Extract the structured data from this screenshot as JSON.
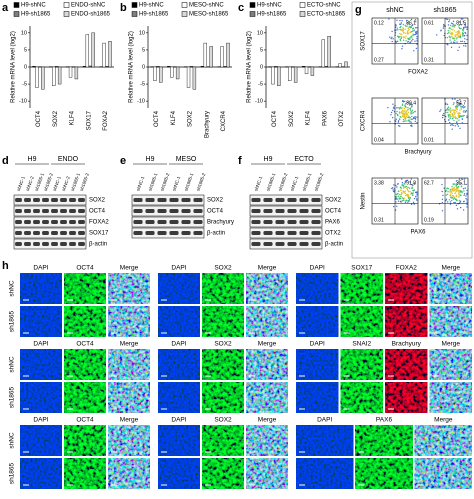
{
  "chart_data": [
    {
      "type": "bar",
      "label": "a",
      "ylabel": "Relative mRNA level (log2)",
      "categories": [
        "OCT4",
        "SOX2",
        "KLF4",
        "SOX17",
        "FOXA2"
      ],
      "series": [
        {
          "name": "H9-shNC",
          "color": "#000000",
          "values": [
            0.2,
            0.1,
            0.1,
            0.2,
            0.1
          ]
        },
        {
          "name": "ENDO-shNC",
          "color": "#ffffff",
          "values": [
            -6,
            -5.5,
            -3,
            9.5,
            7
          ]
        },
        {
          "name": "H9-sh1865",
          "color": "#7f7f7f",
          "values": [
            0.1,
            0.2,
            0.1,
            0.3,
            0.2
          ]
        },
        {
          "name": "ENDO-sh1865",
          "color": "#d9d9d9",
          "values": [
            -6.5,
            -5,
            -3.5,
            10,
            7.5
          ]
        }
      ],
      "ylim": [
        -12,
        12
      ],
      "yticks": [
        -10,
        -5,
        0,
        5,
        10
      ]
    },
    {
      "type": "bar",
      "label": "b",
      "ylabel": "Relative mRNA level (log2)",
      "categories": [
        "OCT4",
        "KLF4",
        "SOX2",
        "Brachyury",
        "CXCR4"
      ],
      "series": [
        {
          "name": "H9-shNC",
          "color": "#000000",
          "values": [
            0.1,
            0.2,
            0.1,
            0.2,
            0.1
          ]
        },
        {
          "name": "MESO-shNC",
          "color": "#ffffff",
          "values": [
            -4,
            -3,
            -6,
            7,
            6
          ]
        },
        {
          "name": "H9-sh1865",
          "color": "#7f7f7f",
          "values": [
            0.2,
            0.1,
            0.2,
            0.1,
            0.2
          ]
        },
        {
          "name": "MESO-sh1865",
          "color": "#d9d9d9",
          "values": [
            -4.5,
            -3.5,
            -6.5,
            6,
            7
          ]
        }
      ],
      "ylim": [
        -12,
        12
      ],
      "yticks": [
        -10,
        -5,
        0,
        5,
        10
      ]
    },
    {
      "type": "bar",
      "label": "c",
      "ylabel": "Relative mRNA level (log2)",
      "categories": [
        "OCT4",
        "SOX2",
        "KLF4",
        "PAX6",
        "OTX2"
      ],
      "series": [
        {
          "name": "H9-shNC",
          "color": "#000000",
          "values": [
            0.1,
            0.1,
            0.2,
            0.1,
            0.1
          ]
        },
        {
          "name": "ECTO-shNC",
          "color": "#ffffff",
          "values": [
            -5,
            -4,
            -2,
            8,
            1
          ]
        },
        {
          "name": "H9-sh1865",
          "color": "#7f7f7f",
          "values": [
            0.2,
            0.1,
            0.1,
            0.2,
            0.1
          ]
        },
        {
          "name": "ECTO-sh1865",
          "color": "#d9d9d9",
          "values": [
            -5.5,
            -4.5,
            -2.5,
            9,
            1.5
          ]
        }
      ],
      "ylim": [
        -12,
        12
      ],
      "yticks": [
        -10,
        -5,
        0,
        5,
        10
      ]
    }
  ],
  "blots": [
    {
      "label": "d",
      "groups": [
        {
          "name": "H9",
          "lanes": [
            "shNC-1",
            "shNC-2",
            "sh1865-1",
            "sh1865-2"
          ]
        },
        {
          "name": "ENDO",
          "lanes": [
            "shNC-1",
            "shNC-2",
            "sh1865-1",
            "sh1865-2"
          ]
        }
      ],
      "rows": [
        "SOX2",
        "OCT4",
        "FOXA2",
        "SOX17",
        "β-actin"
      ]
    },
    {
      "label": "e",
      "groups": [
        {
          "name": "H9",
          "lanes": [
            "shNC-1",
            "sh1865-1",
            "sh1865-2"
          ]
        },
        {
          "name": "MESO",
          "lanes": [
            "shNC-1",
            "sh1865-1",
            "sh1865-2"
          ]
        }
      ],
      "rows": [
        "SOX2",
        "OCT4",
        "Brachyury",
        "β-actin"
      ]
    },
    {
      "label": "f",
      "groups": [
        {
          "name": "H9",
          "lanes": [
            "shNC-1",
            "sh1865-1",
            "sh1865-2"
          ]
        },
        {
          "name": "ECTO",
          "lanes": [
            "shNC-1",
            "sh1865-1",
            "sh1865-2"
          ]
        }
      ],
      "rows": [
        "SOX2",
        "OCT4",
        "PAX6",
        "OTX2",
        "β-actin"
      ]
    }
  ],
  "flow": {
    "label": "g",
    "columns": [
      "shNC",
      "sh1865"
    ],
    "rows": [
      {
        "y_label": "SOX17",
        "x_label": "FOXA2",
        "cells": [
          {
            "tl": "0.12",
            "tr": "86.1",
            "bl": "0.27"
          },
          {
            "tl": "0.61",
            "tr": "81.5",
            "bl": "0.31"
          }
        ]
      },
      {
        "y_label": "CXCR4",
        "x_label": "Brachyury",
        "cells": [
          {
            "tr": "89.4",
            "bl": "0.04"
          },
          {
            "tr": "54.7",
            "bl": "0.01"
          }
        ]
      },
      {
        "y_label": "Nestin",
        "x_label": "PAX6",
        "cells": [
          {
            "tl": "3.38",
            "tr": "91.8",
            "bl": "0.31"
          },
          {
            "tl": "62.7",
            "tr": "35.1",
            "bl": "0.19"
          }
        ]
      }
    ]
  },
  "micrographs": {
    "label": "h",
    "samples": [
      "shNC",
      "sh1865"
    ],
    "rows": [
      {
        "blocks": [
          {
            "columns": [
              "DAPI",
              "OCT4",
              "Merge"
            ]
          },
          {
            "columns": [
              "DAPI",
              "SOX2",
              "Merge"
            ]
          },
          {
            "columns": [
              "DAPI",
              "SOX17",
              "FOXA2",
              "Merge"
            ]
          }
        ]
      },
      {
        "blocks": [
          {
            "columns": [
              "DAPI",
              "OCT4",
              "Merge"
            ]
          },
          {
            "columns": [
              "DAPI",
              "SOX2",
              "Merge"
            ]
          },
          {
            "columns": [
              "DAPI",
              "SNAI2",
              "Brachyury",
              "Merge"
            ]
          }
        ]
      },
      {
        "blocks": [
          {
            "columns": [
              "DAPI",
              "OCT4",
              "Merge"
            ]
          },
          {
            "columns": [
              "DAPI",
              "SOX2",
              "Merge"
            ]
          },
          {
            "columns": [
              "DAPI",
              "PAX6",
              "Merge"
            ]
          }
        ]
      }
    ]
  }
}
